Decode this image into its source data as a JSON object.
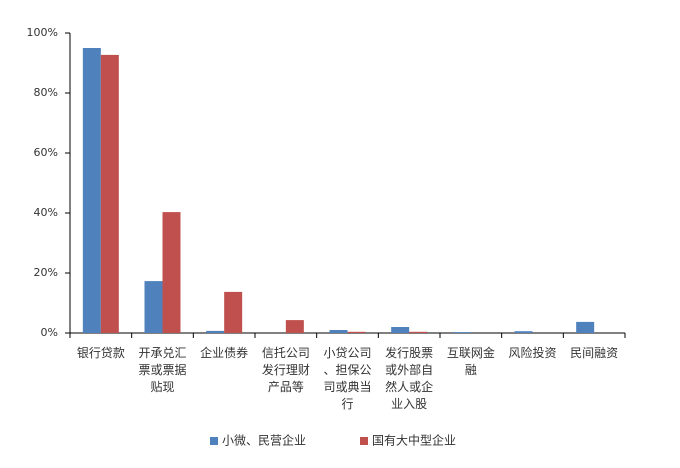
{
  "chart_data": {
    "type": "bar",
    "categories": [
      "银行贷款",
      "开承兑汇票或票据贴现",
      "企业债券",
      "信托公司发行理财产品等",
      "小贷公司、担保公司或典当行",
      "发行股票或外部自然人或企业入股",
      "互联网金融",
      "风险投资",
      "民间融资"
    ],
    "series": [
      {
        "name": "小微、民营企业",
        "color": "#4f81bd",
        "values": [
          95,
          17.3,
          0.7,
          0,
          1,
          2,
          0.3,
          0.6,
          3.7
        ]
      },
      {
        "name": "国有大中型企业",
        "color": "#c0504d",
        "values": [
          92.7,
          40.3,
          13.7,
          4.3,
          0.4,
          0.4,
          0,
          0,
          0
        ]
      }
    ],
    "ylim": [
      0,
      100
    ],
    "yticks": [
      {
        "value": 0,
        "label": "0%"
      },
      {
        "value": 20,
        "label": "20%"
      },
      {
        "value": 40,
        "label": "40%"
      },
      {
        "value": 60,
        "label": "60%"
      },
      {
        "value": 80,
        "label": "80%"
      },
      {
        "value": 100,
        "label": "100%"
      }
    ],
    "legend": "bottom"
  }
}
